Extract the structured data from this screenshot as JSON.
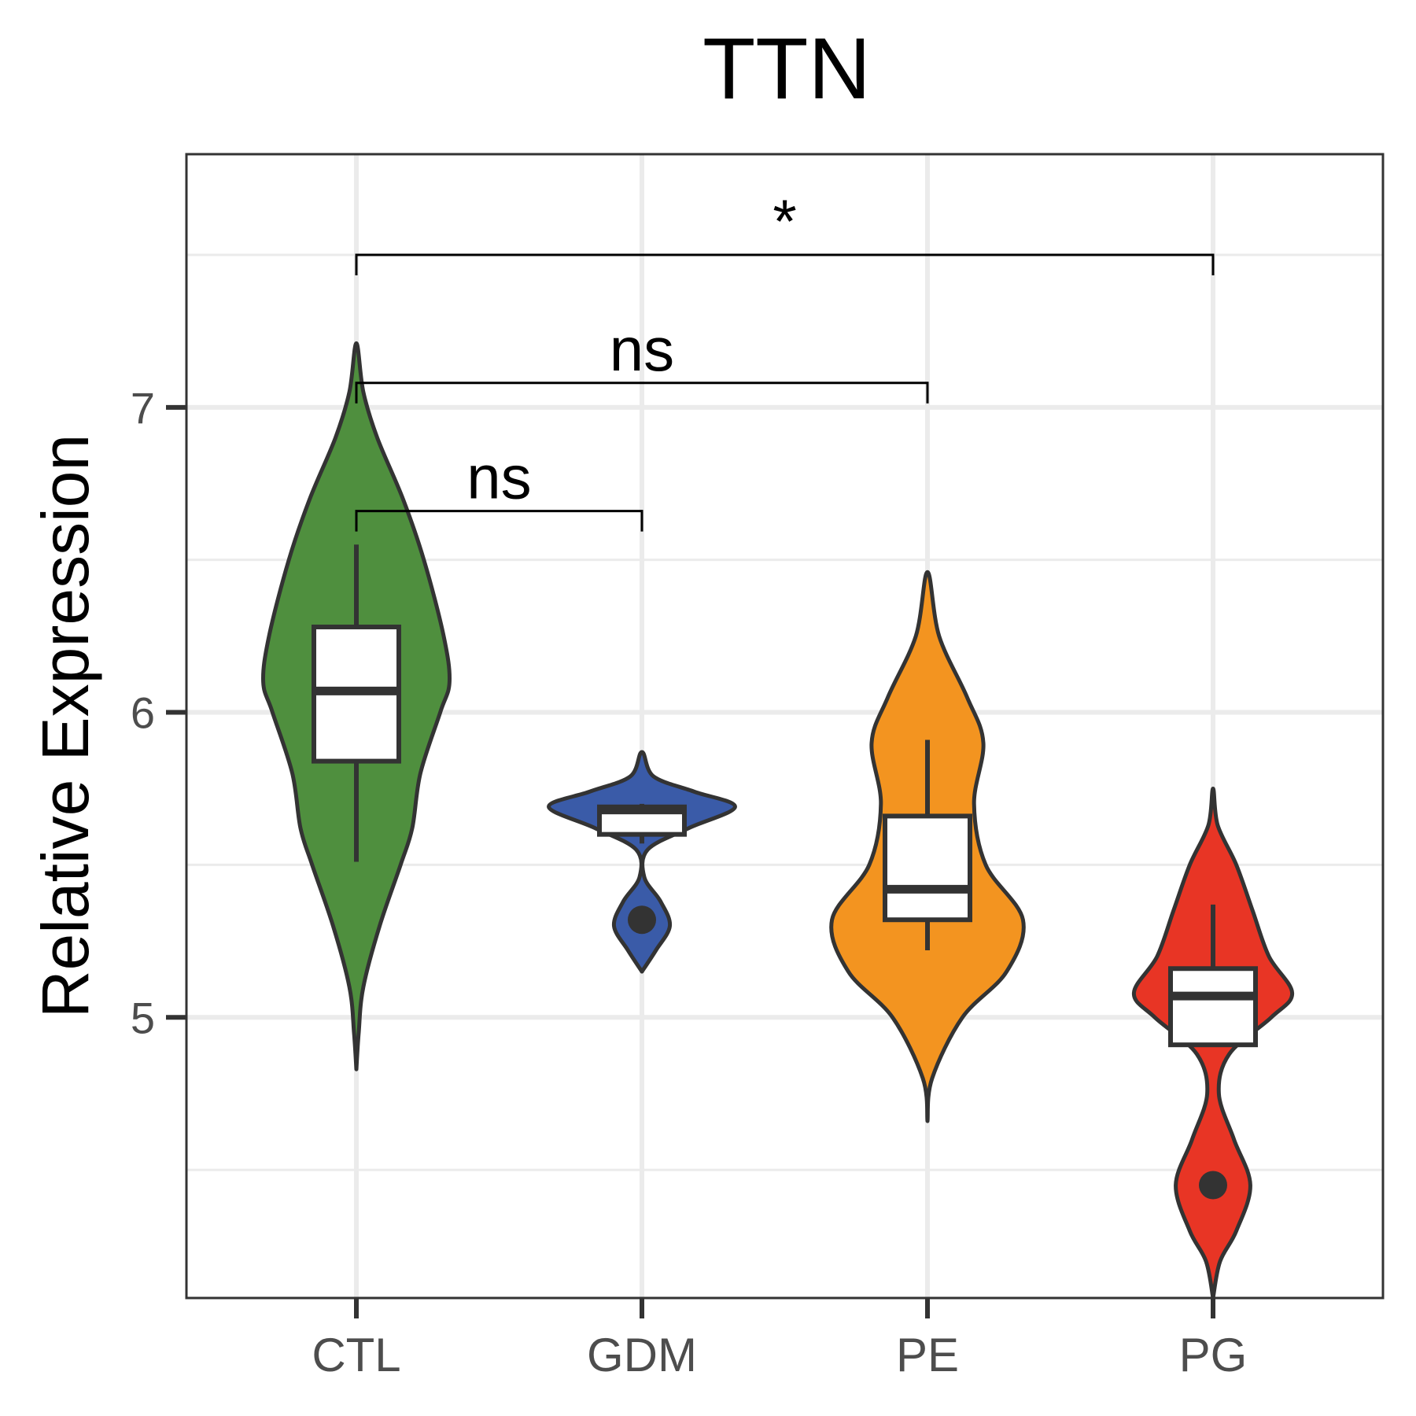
{
  "chart_data": {
    "type": "violin",
    "title": "TTN",
    "xlabel": "",
    "ylabel": "Relative Expression",
    "ylim": [
      4.08,
      7.83
    ],
    "yticks": [
      5,
      6,
      7
    ],
    "ytick_labels": [
      "5",
      "6",
      "7"
    ],
    "grid": true,
    "categories": [
      "CTL",
      "GDM",
      "PE",
      "PG"
    ],
    "colors": [
      "#4f8f3e",
      "#3a5ba8",
      "#f39420",
      "#e83525"
    ],
    "groups": [
      {
        "name": "CTL",
        "violin_profile": [
          [
            4.83,
            0.0
          ],
          [
            4.95,
            0.02
          ],
          [
            5.1,
            0.06
          ],
          [
            5.3,
            0.2
          ],
          [
            5.5,
            0.38
          ],
          [
            5.62,
            0.48
          ],
          [
            5.8,
            0.55
          ],
          [
            6.0,
            0.72
          ],
          [
            6.1,
            0.8
          ],
          [
            6.25,
            0.75
          ],
          [
            6.5,
            0.58
          ],
          [
            6.7,
            0.4
          ],
          [
            6.9,
            0.18
          ],
          [
            7.05,
            0.06
          ],
          [
            7.21,
            0.0
          ]
        ],
        "box": {
          "q1": 5.84,
          "median": 6.07,
          "q3": 6.28,
          "whisker_low": 5.51,
          "whisker_high": 6.55
        },
        "outliers": []
      },
      {
        "name": "GDM",
        "violin_profile": [
          [
            5.15,
            0.0
          ],
          [
            5.22,
            0.12
          ],
          [
            5.3,
            0.24
          ],
          [
            5.38,
            0.16
          ],
          [
            5.46,
            0.02
          ],
          [
            5.55,
            0.05
          ],
          [
            5.62,
            0.4
          ],
          [
            5.69,
            0.8
          ],
          [
            5.74,
            0.45
          ],
          [
            5.79,
            0.1
          ],
          [
            5.87,
            0.0
          ]
        ],
        "box": {
          "q1": 5.6,
          "median": 5.68,
          "q3": 5.69,
          "whisker_low": 5.57,
          "whisker_high": 5.7
        },
        "outliers": [
          5.32
        ]
      },
      {
        "name": "PE",
        "violin_profile": [
          [
            4.66,
            0.0
          ],
          [
            4.8,
            0.04
          ],
          [
            5.0,
            0.3
          ],
          [
            5.15,
            0.68
          ],
          [
            5.32,
            0.82
          ],
          [
            5.5,
            0.5
          ],
          [
            5.7,
            0.4
          ],
          [
            5.9,
            0.48
          ],
          [
            6.05,
            0.34
          ],
          [
            6.25,
            0.1
          ],
          [
            6.46,
            0.0
          ]
        ],
        "box": {
          "q1": 5.32,
          "median": 5.42,
          "q3": 5.66,
          "whisker_low": 5.22,
          "whisker_high": 5.91
        },
        "outliers": []
      },
      {
        "name": "PG",
        "violin_profile": [
          [
            4.08,
            0.0
          ],
          [
            4.2,
            0.06
          ],
          [
            4.3,
            0.2
          ],
          [
            4.45,
            0.32
          ],
          [
            4.6,
            0.18
          ],
          [
            4.75,
            0.05
          ],
          [
            4.88,
            0.14
          ],
          [
            5.0,
            0.5
          ],
          [
            5.08,
            0.68
          ],
          [
            5.2,
            0.48
          ],
          [
            5.35,
            0.34
          ],
          [
            5.5,
            0.2
          ],
          [
            5.63,
            0.04
          ],
          [
            5.75,
            0.0
          ]
        ],
        "box": {
          "q1": 4.91,
          "median": 5.07,
          "q3": 5.16,
          "whisker_low": 4.91,
          "whisker_high": 5.37
        },
        "outliers": [
          4.45
        ]
      }
    ],
    "comparisons": [
      {
        "from": "CTL",
        "to": "GDM",
        "label": "ns",
        "y": 6.66
      },
      {
        "from": "CTL",
        "to": "PE",
        "label": "ns",
        "y": 7.08
      },
      {
        "from": "CTL",
        "to": "PG",
        "label": "*",
        "y": 7.5
      }
    ]
  }
}
